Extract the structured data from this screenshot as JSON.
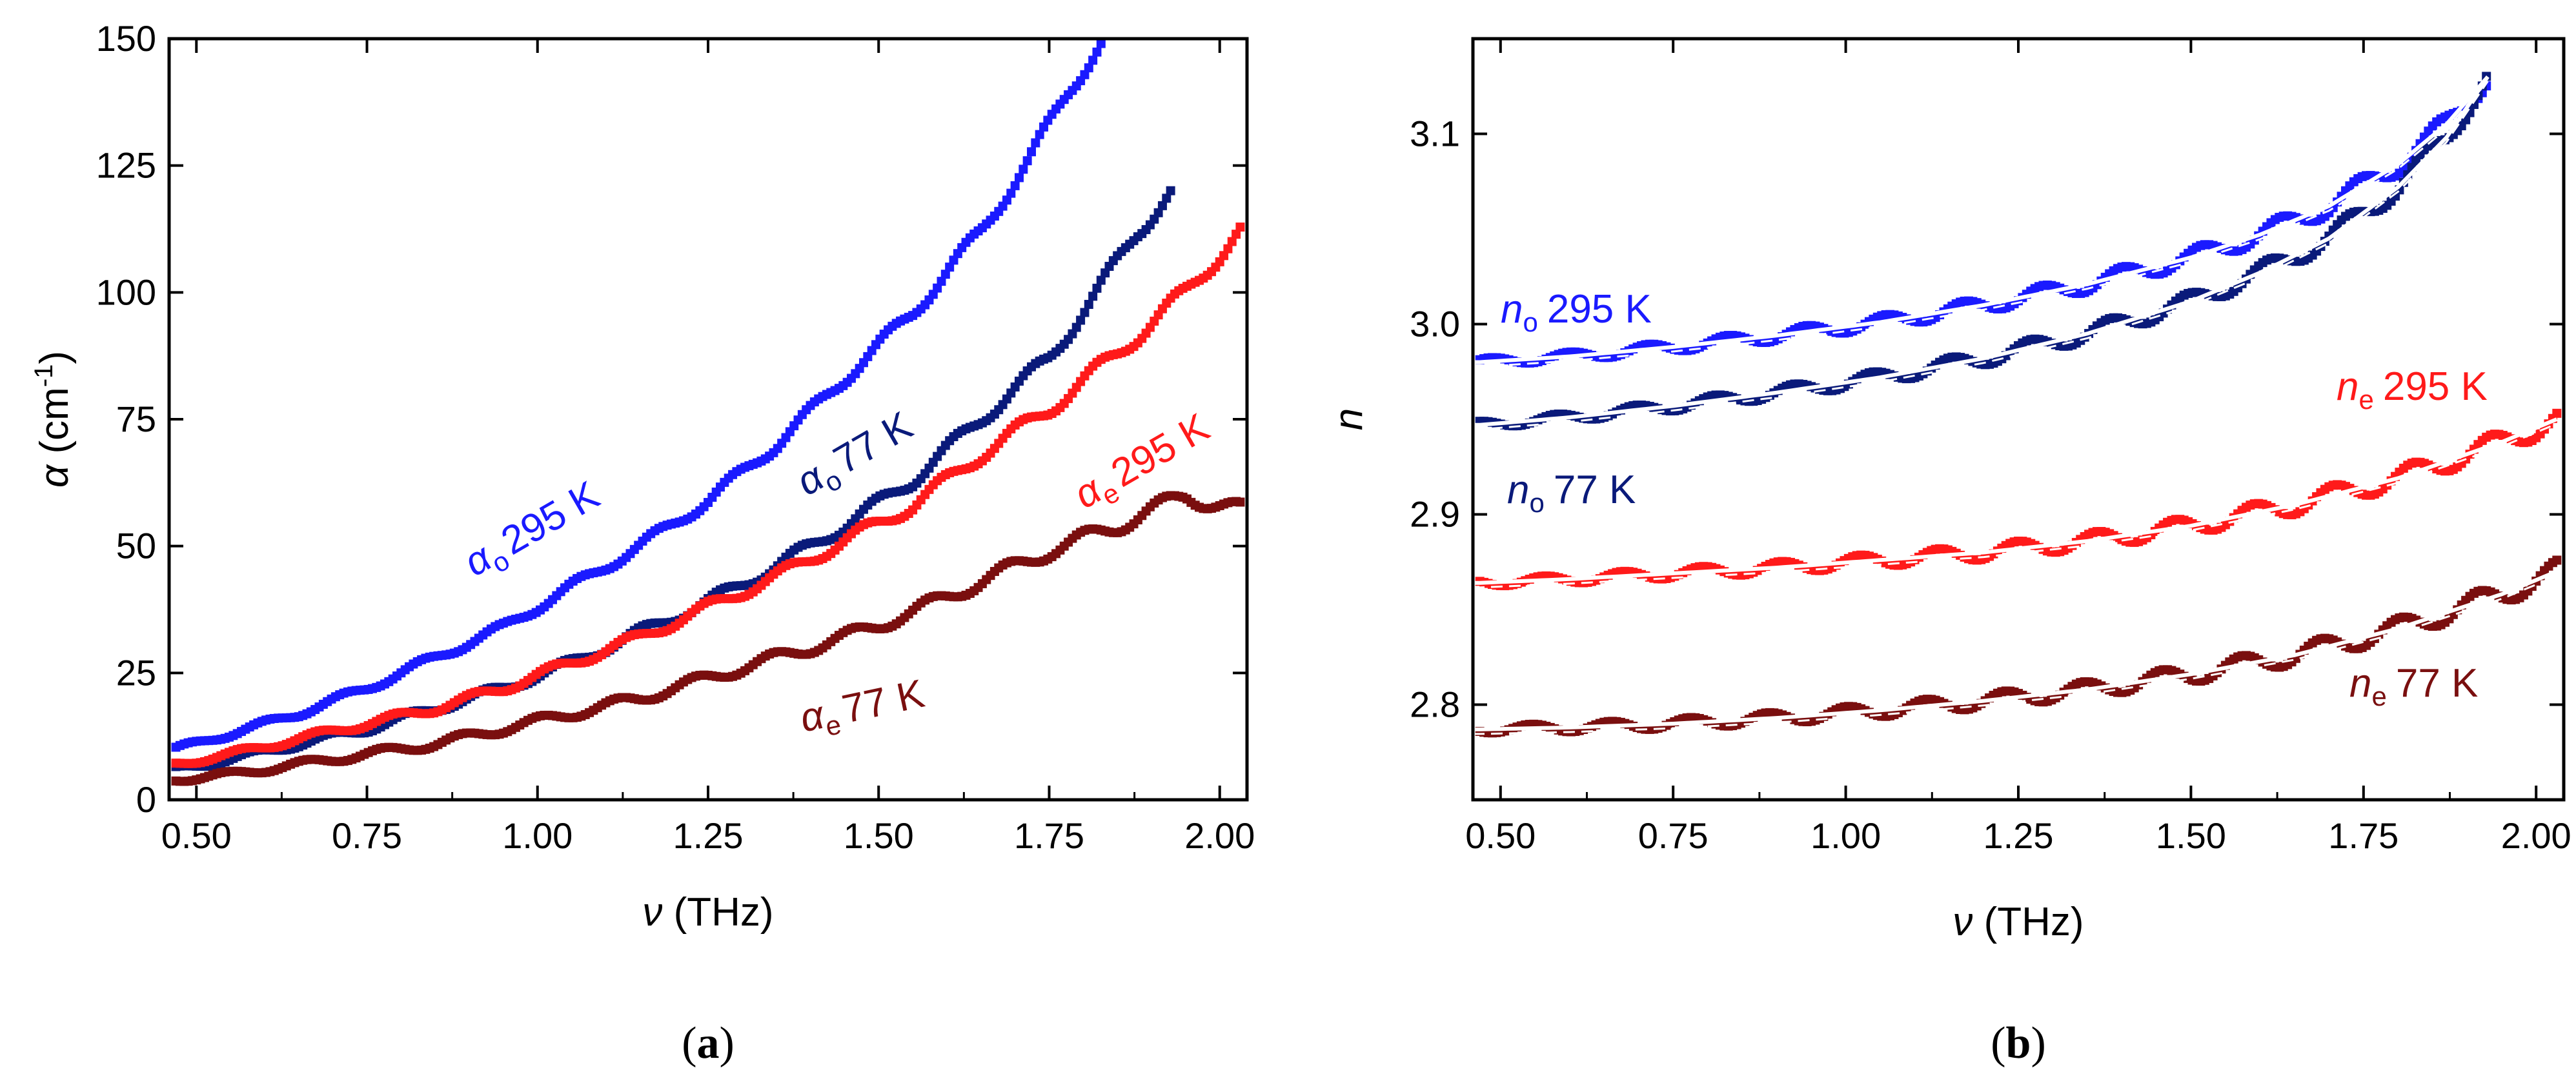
{
  "figure": {
    "panels": [
      {
        "id": "a",
        "caption_letter": "a",
        "xaxis": {
          "symbol": "ν",
          "unit": "(THz)",
          "range": [
            0.46,
            2.04
          ],
          "ticks": [
            "0.50",
            "0.75",
            "1.00",
            "1.25",
            "1.50",
            "1.75",
            "2.00"
          ]
        },
        "yaxis": {
          "symbol": "α",
          "unit": "(cm",
          "unit_sup": "-1",
          "unit_close": ")",
          "range": [
            0,
            150
          ],
          "ticks": [
            "0",
            "25",
            "50",
            "75",
            "100",
            "125",
            "150"
          ]
        }
      },
      {
        "id": "b",
        "caption_letter": "b",
        "xaxis": {
          "symbol": "ν",
          "unit": "(THz)",
          "range": [
            0.46,
            2.04
          ],
          "ticks": [
            "0.50",
            "0.75",
            "1.00",
            "1.25",
            "1.50",
            "1.75",
            "2.00"
          ]
        },
        "yaxis": {
          "symbol": "n",
          "range": [
            2.75,
            3.15
          ],
          "ticks": [
            "2.8",
            "2.9",
            "3.0",
            "3.1"
          ]
        }
      }
    ]
  },
  "chart_data": [
    {
      "type": "scatter",
      "panel": "a",
      "xlabel": "ν (THz)",
      "ylabel": "α (cm-1)",
      "xlim": [
        0.46,
        2.04
      ],
      "ylim": [
        0,
        150
      ],
      "series": [
        {
          "name": "αo 295 K",
          "sym": "α",
          "sub": "o",
          "temp": "295 K",
          "color": "#1a1aff",
          "x": [
            0.47,
            0.55,
            0.65,
            0.75,
            0.85,
            0.95,
            1.05,
            1.15,
            1.25,
            1.35,
            1.45,
            1.55,
            1.65,
            1.72,
            1.78,
            1.83
          ],
          "y": [
            10,
            13,
            17,
            22,
            28,
            34,
            42,
            50,
            59,
            70,
            83,
            96,
            112,
            126,
            140,
            150
          ]
        },
        {
          "name": "αo 77 K",
          "sym": "α",
          "sub": "o",
          "temp": "77 K",
          "color": "#0a1a7a",
          "x": [
            0.47,
            0.55,
            0.65,
            0.75,
            0.85,
            0.95,
            1.05,
            1.15,
            1.25,
            1.35,
            1.45,
            1.55,
            1.65,
            1.75,
            1.82,
            1.88,
            1.93
          ],
          "y": [
            6,
            8,
            11,
            14,
            18,
            22,
            27,
            33,
            39,
            46,
            54,
            63,
            75,
            87,
            100,
            112,
            120
          ]
        },
        {
          "name": "αe 295 K",
          "sym": "α",
          "sub": "e",
          "temp": "295 K",
          "color": "#ff1a1a",
          "x": [
            0.47,
            0.55,
            0.65,
            0.75,
            0.85,
            0.95,
            1.05,
            1.15,
            1.25,
            1.35,
            1.45,
            1.55,
            1.65,
            1.75,
            1.85,
            1.95,
            2.03
          ],
          "y": [
            7,
            9,
            12,
            15,
            18,
            22,
            27,
            32,
            38,
            44,
            51,
            58,
            68,
            77,
            88,
            100,
            112
          ]
        },
        {
          "name": "αe 77 K",
          "sym": "α",
          "sub": "e",
          "temp": "77 K",
          "color": "#7a0f0f",
          "x": [
            0.47,
            0.55,
            0.65,
            0.75,
            0.85,
            0.95,
            1.05,
            1.15,
            1.25,
            1.35,
            1.45,
            1.55,
            1.65,
            1.75,
            1.85,
            1.95,
            2.03
          ],
          "y": [
            4,
            5,
            7,
            9,
            11,
            14,
            17,
            20,
            24,
            28,
            32,
            37,
            43,
            49,
            54,
            60,
            57
          ]
        }
      ],
      "annotations": [
        "αo 295 K",
        "αo 77 K",
        "αe 295 K",
        "αe 77 K"
      ]
    },
    {
      "type": "scatter",
      "panel": "b",
      "xlabel": "ν (THz)",
      "ylabel": "n",
      "xlim": [
        0.46,
        2.04
      ],
      "ylim": [
        2.75,
        3.15
      ],
      "fit_lines": "white solid and dashed curves through each series",
      "series": [
        {
          "name": "no 295 K",
          "sym": "n",
          "sub": "o",
          "temp": "295 K",
          "color": "#1a1aff",
          "x": [
            0.47,
            0.6,
            0.75,
            0.9,
            1.05,
            1.2,
            1.35,
            1.5,
            1.6,
            1.7,
            1.8,
            1.87,
            1.93
          ],
          "y": [
            2.98,
            2.983,
            2.988,
            2.994,
            3.001,
            3.01,
            3.021,
            3.035,
            3.047,
            3.062,
            3.084,
            3.105,
            3.13
          ]
        },
        {
          "name": "no 77 K",
          "sym": "n",
          "sub": "o",
          "temp": "77 K",
          "color": "#0a1a7a",
          "x": [
            0.47,
            0.6,
            0.75,
            0.9,
            1.05,
            1.2,
            1.35,
            1.5,
            1.6,
            1.7,
            1.8,
            1.87,
            1.93
          ],
          "y": [
            2.947,
            2.951,
            2.957,
            2.964,
            2.972,
            2.982,
            2.995,
            3.012,
            3.027,
            3.045,
            3.072,
            3.098,
            3.13
          ]
        },
        {
          "name": "ne 295 K",
          "sym": "n",
          "sub": "e",
          "temp": "295 K",
          "color": "#ff1a1a",
          "x": [
            0.47,
            0.6,
            0.75,
            0.9,
            1.05,
            1.2,
            1.35,
            1.5,
            1.65,
            1.8,
            1.95,
            2.03
          ],
          "y": [
            2.864,
            2.866,
            2.869,
            2.872,
            2.876,
            2.88,
            2.886,
            2.894,
            2.905,
            2.919,
            2.938,
            2.95
          ]
        },
        {
          "name": "ne 77 K",
          "sym": "n",
          "sub": "e",
          "temp": "77 K",
          "color": "#7a0f0f",
          "x": [
            0.47,
            0.6,
            0.75,
            0.9,
            1.05,
            1.2,
            1.35,
            1.5,
            1.65,
            1.8,
            1.95,
            2.03
          ],
          "y": [
            2.787,
            2.788,
            2.79,
            2.793,
            2.797,
            2.802,
            2.808,
            2.816,
            2.826,
            2.84,
            2.858,
            2.87
          ]
        }
      ],
      "annotations": [
        "no 295 K",
        "no 77 K",
        "ne 295 K",
        "ne 77 K"
      ]
    }
  ]
}
